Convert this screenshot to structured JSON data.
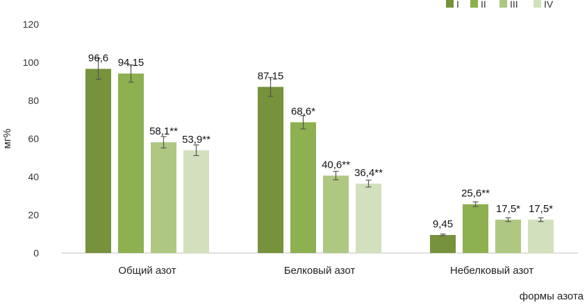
{
  "chart_data": {
    "type": "bar",
    "title": "",
    "xlabel": "формы азота",
    "ylabel": "мг%",
    "ylim": [
      0,
      120
    ],
    "yticks": [
      "0",
      "20",
      "40",
      "60",
      "80",
      "100",
      "120"
    ],
    "categories": [
      "Общий азот",
      "Белковый азот",
      "Небелковый азот"
    ],
    "grid": false,
    "legend_position": "top-right",
    "series": [
      {
        "name": "I",
        "color": "#76923c",
        "values": [
          96.6,
          87.15,
          9.45
        ],
        "errors": [
          5.5,
          5.0,
          0.5
        ],
        "labels": [
          "96,6",
          "87,15",
          "9,45"
        ]
      },
      {
        "name": "II",
        "color": "#8db050",
        "values": [
          94.15,
          68.6,
          25.6
        ],
        "errors": [
          4.5,
          3.5,
          1.2
        ],
        "labels": [
          "94,15",
          "68,6*",
          "25,6**"
        ]
      },
      {
        "name": "III",
        "color": "#aec882",
        "values": [
          58.1,
          40.6,
          17.5
        ],
        "errors": [
          3.0,
          2.2,
          1.0
        ],
        "labels": [
          "58,1**",
          "40,6**",
          "17,5*"
        ]
      },
      {
        "name": "IV",
        "color": "#d3e0bd",
        "values": [
          53.9,
          36.4,
          17.5
        ],
        "errors": [
          2.8,
          1.8,
          1.0
        ],
        "labels": [
          "53,9**",
          "36,4**",
          "17,5*"
        ]
      }
    ]
  }
}
